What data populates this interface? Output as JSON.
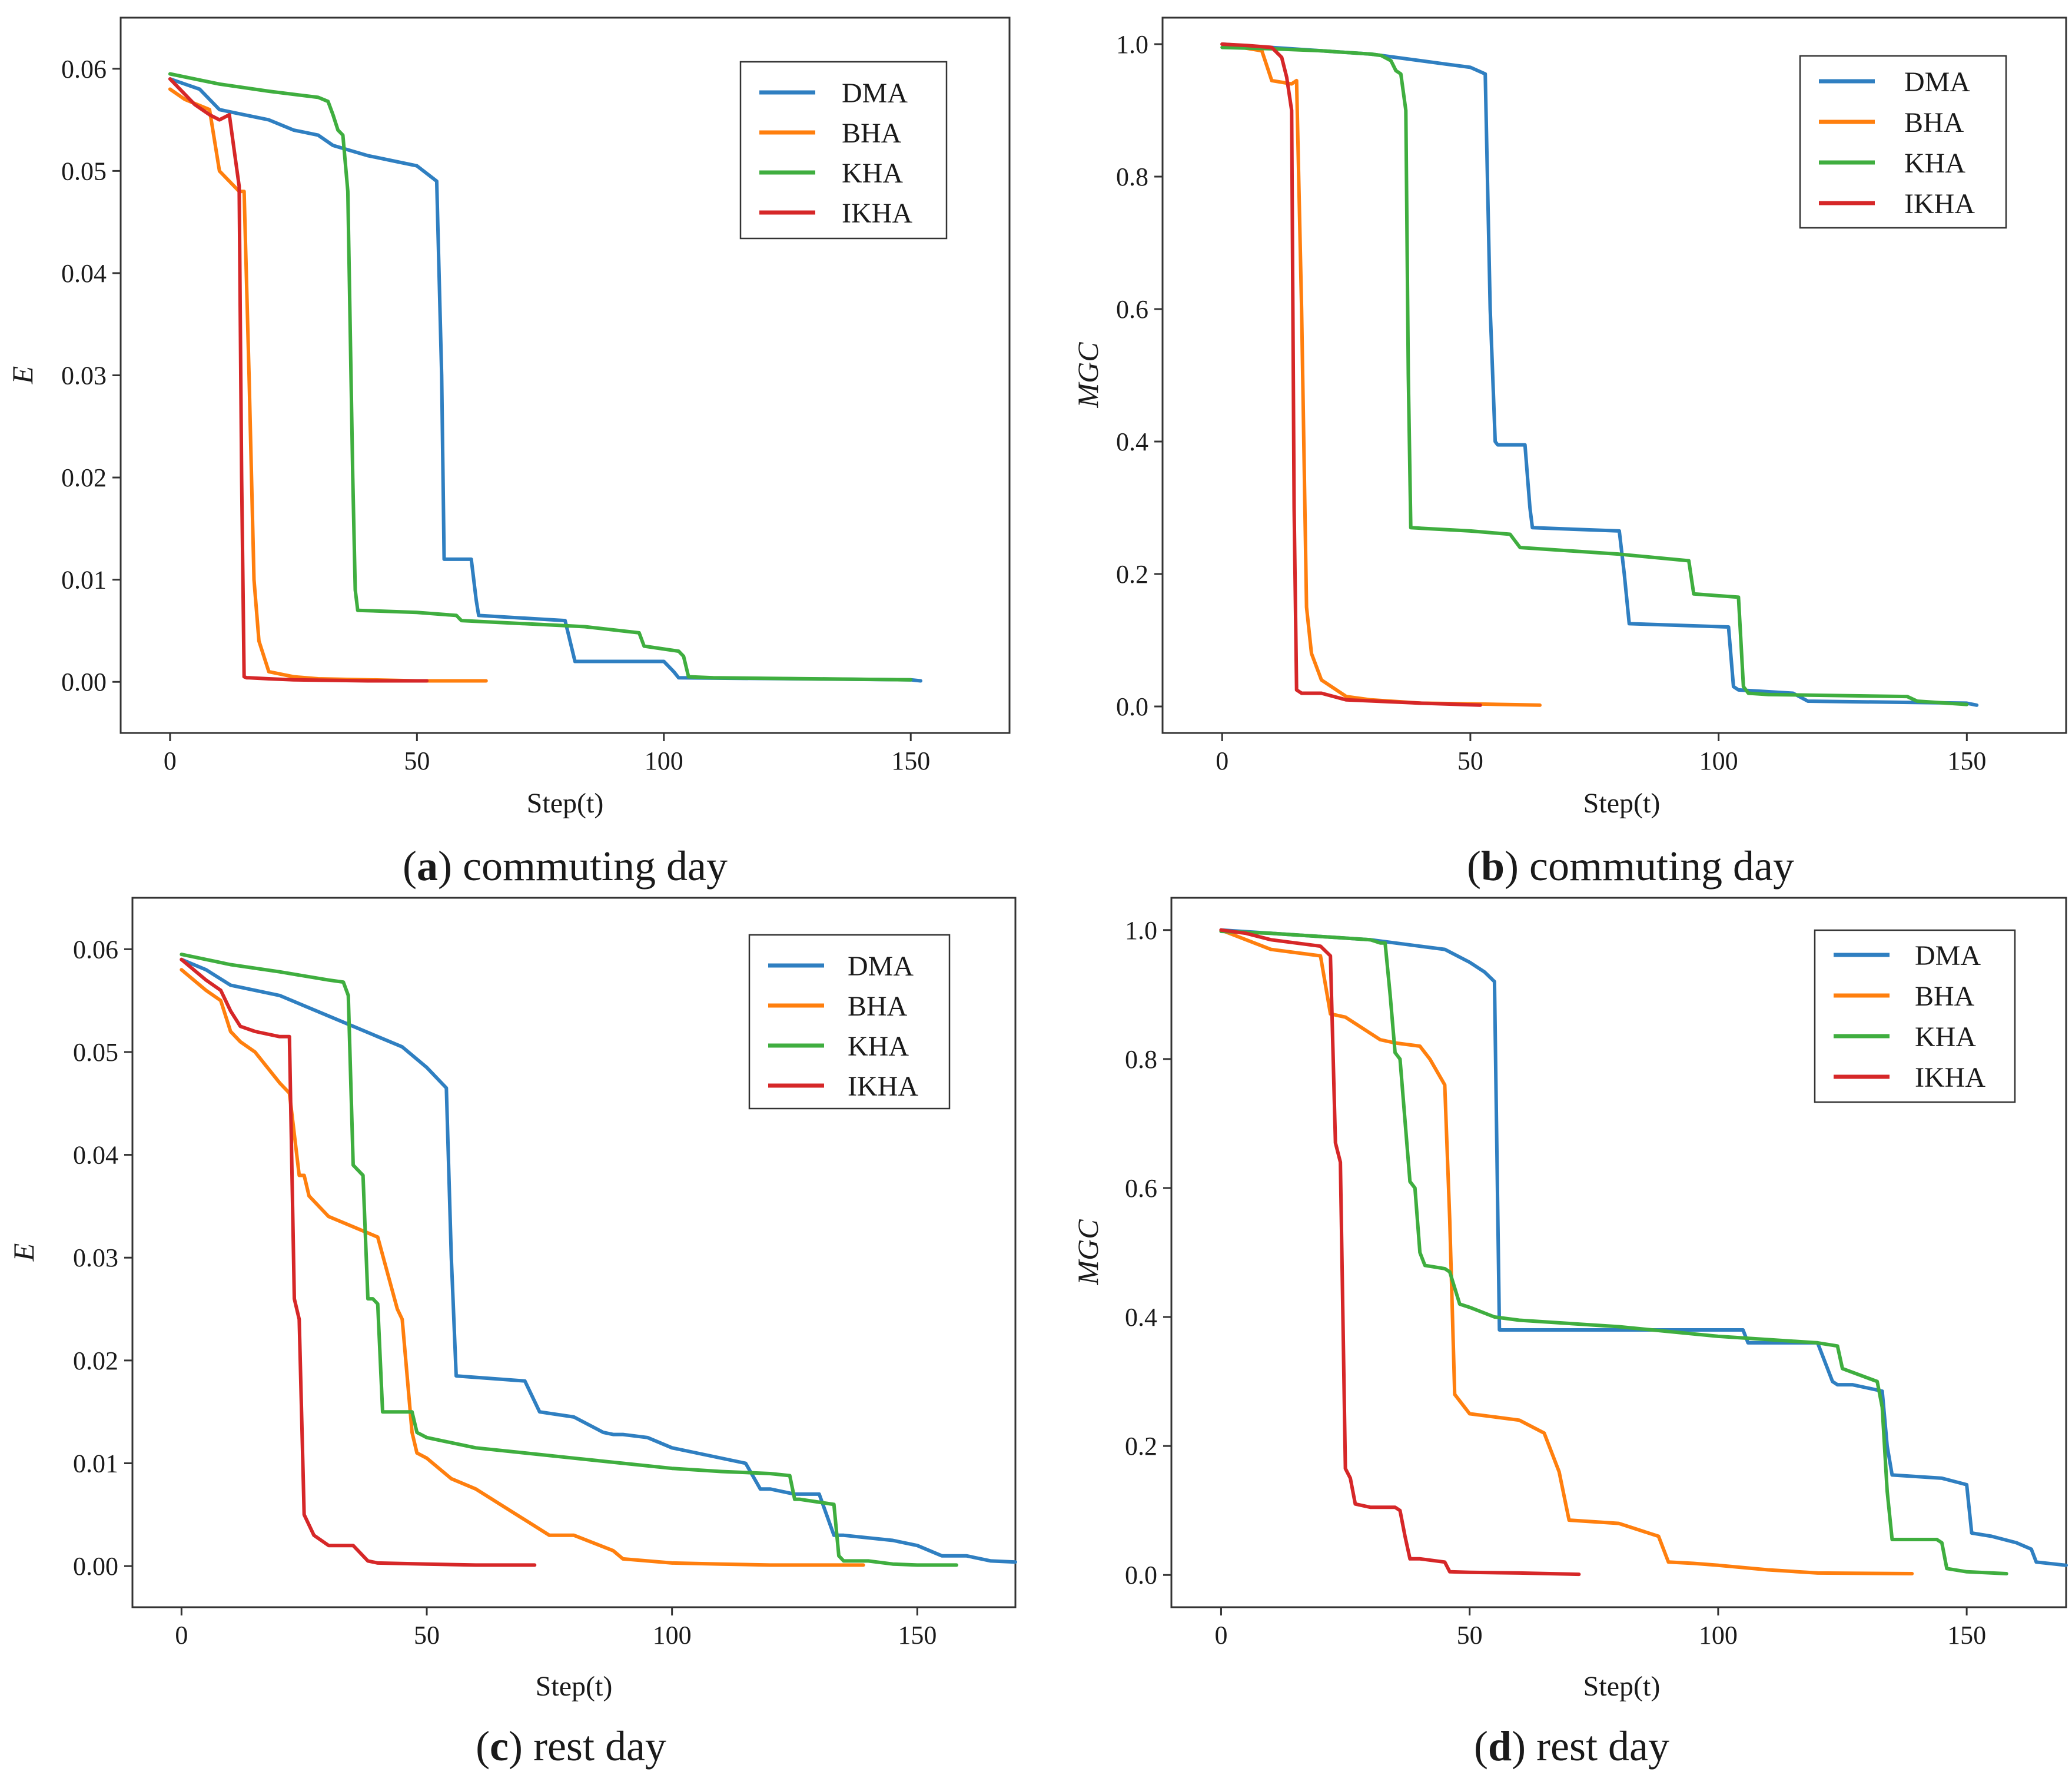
{
  "colors": {
    "DMA": "#2f7fc1",
    "BHA": "#ff7f0e",
    "KHA": "#3fae3f",
    "IKHA": "#d62728"
  },
  "chart_data": [
    {
      "type": "line",
      "panel_letter": "a",
      "caption_text": "commuting day",
      "xlabel": "Step(t)",
      "ylabel": "E",
      "xlim": [
        -10,
        170
      ],
      "ylim": [
        -0.005,
        0.065
      ],
      "xticks": [
        0,
        50,
        100,
        150
      ],
      "yticks": [
        0.0,
        0.01,
        0.02,
        0.03,
        0.04,
        0.05,
        0.06
      ],
      "ytick_labels": [
        "0.00",
        "0.01",
        "0.02",
        "0.03",
        "0.04",
        "0.05",
        "0.06"
      ],
      "xtick_labels": [
        "0",
        "50",
        "100",
        "150"
      ],
      "legend": [
        "DMA",
        "BHA",
        "KHA",
        "IKHA"
      ],
      "legend_position": "top-right",
      "series": [
        {
          "name": "DMA",
          "x": [
            0,
            3,
            6,
            10,
            15,
            20,
            25,
            30,
            33,
            40,
            45,
            50,
            54,
            55,
            55.5,
            61,
            62,
            62.5,
            80,
            81,
            82,
            100,
            102,
            103,
            150,
            152
          ],
          "y": [
            0.059,
            0.0585,
            0.058,
            0.056,
            0.0555,
            0.055,
            0.054,
            0.0535,
            0.0525,
            0.0515,
            0.051,
            0.0505,
            0.049,
            0.03,
            0.012,
            0.012,
            0.008,
            0.0065,
            0.006,
            0.004,
            0.002,
            0.002,
            0.001,
            0.0004,
            0.0002,
            0.0001
          ]
        },
        {
          "name": "BHA",
          "x": [
            0,
            3,
            8,
            10,
            14,
            15,
            16,
            17,
            18,
            20,
            25,
            30,
            40,
            50,
            64
          ],
          "y": [
            0.058,
            0.057,
            0.056,
            0.05,
            0.048,
            0.048,
            0.03,
            0.01,
            0.004,
            0.001,
            0.0005,
            0.0003,
            0.0002,
            0.0001,
            0.0001
          ]
        },
        {
          "name": "KHA",
          "x": [
            0,
            10,
            20,
            30,
            32,
            33,
            34,
            35,
            36,
            37,
            37.5,
            38,
            50,
            58,
            59,
            80,
            84,
            95,
            96,
            103,
            104,
            105,
            110,
            130,
            150
          ],
          "y": [
            0.0595,
            0.0585,
            0.0578,
            0.0572,
            0.0568,
            0.0555,
            0.054,
            0.0535,
            0.048,
            0.02,
            0.009,
            0.007,
            0.0068,
            0.0065,
            0.006,
            0.0055,
            0.0054,
            0.0048,
            0.0035,
            0.003,
            0.0025,
            0.0005,
            0.0004,
            0.0003,
            0.0002
          ]
        },
        {
          "name": "IKHA",
          "x": [
            0,
            2,
            5,
            8,
            10,
            12,
            13,
            14,
            14.5,
            15,
            15.5,
            16,
            20,
            25,
            40,
            52
          ],
          "y": [
            0.059,
            0.058,
            0.0565,
            0.0555,
            0.055,
            0.0555,
            0.052,
            0.0485,
            0.02,
            0.0005,
            0.0004,
            0.0004,
            0.0003,
            0.0002,
            0.0001,
            0.0001
          ]
        }
      ]
    },
    {
      "type": "line",
      "panel_letter": "b",
      "caption_text": "commuting day",
      "xlabel": "Step(t)",
      "ylabel": "MGC",
      "xlim": [
        -12,
        170
      ],
      "ylim": [
        -0.04,
        1.04
      ],
      "xticks": [
        0,
        50,
        100,
        150
      ],
      "yticks": [
        0.0,
        0.2,
        0.4,
        0.6,
        0.8,
        1.0
      ],
      "ytick_labels": [
        "0.0",
        "0.2",
        "0.4",
        "0.6",
        "0.8",
        "1.0"
      ],
      "xtick_labels": [
        "0",
        "50",
        "100",
        "150"
      ],
      "legend": [
        "DMA",
        "BHA",
        "KHA",
        "IKHA"
      ],
      "legend_position": "top-right",
      "series": [
        {
          "name": "DMA",
          "x": [
            0,
            10,
            20,
            30,
            35,
            40,
            45,
            50,
            53,
            54,
            55,
            55.5,
            61,
            62,
            62.5,
            80,
            81,
            82,
            102,
            103,
            104,
            115,
            118,
            150,
            152
          ],
          "y": [
            1.0,
            0.995,
            0.99,
            0.985,
            0.98,
            0.975,
            0.97,
            0.965,
            0.955,
            0.6,
            0.4,
            0.395,
            0.395,
            0.3,
            0.27,
            0.265,
            0.2,
            0.125,
            0.12,
            0.03,
            0.025,
            0.02,
            0.008,
            0.005,
            0.002
          ]
        },
        {
          "name": "BHA",
          "x": [
            0,
            8,
            10,
            14,
            15,
            16,
            17,
            18,
            20,
            25,
            30,
            40,
            50,
            64
          ],
          "y": [
            1.0,
            0.99,
            0.945,
            0.94,
            0.945,
            0.6,
            0.15,
            0.08,
            0.04,
            0.015,
            0.01,
            0.005,
            0.004,
            0.002
          ]
        },
        {
          "name": "KHA",
          "x": [
            0,
            10,
            20,
            30,
            32,
            34,
            35,
            36,
            37,
            37.5,
            38,
            50,
            58,
            60,
            80,
            94,
            95,
            104,
            105,
            106,
            110,
            138,
            140,
            150
          ],
          "y": [
            0.995,
            0.993,
            0.99,
            0.985,
            0.983,
            0.975,
            0.96,
            0.955,
            0.9,
            0.5,
            0.27,
            0.265,
            0.26,
            0.24,
            0.23,
            0.22,
            0.17,
            0.165,
            0.03,
            0.02,
            0.018,
            0.015,
            0.008,
            0.003
          ]
        },
        {
          "name": "IKHA",
          "x": [
            0,
            5,
            10,
            12,
            13,
            14,
            14.5,
            15,
            16,
            20,
            25,
            40,
            52
          ],
          "y": [
            1.0,
            0.998,
            0.995,
            0.98,
            0.95,
            0.9,
            0.3,
            0.025,
            0.02,
            0.02,
            0.01,
            0.005,
            0.002
          ]
        }
      ]
    },
    {
      "type": "line",
      "panel_letter": "c",
      "caption_text": "rest day",
      "xlabel": "Step(t)",
      "ylabel": "E",
      "xlim": [
        -10,
        170
      ],
      "ylim": [
        -0.004,
        0.065
      ],
      "xticks": [
        0,
        50,
        100,
        150
      ],
      "yticks": [
        0.0,
        0.01,
        0.02,
        0.03,
        0.04,
        0.05,
        0.06
      ],
      "ytick_labels": [
        "0.00",
        "0.01",
        "0.02",
        "0.03",
        "0.04",
        "0.05",
        "0.06"
      ],
      "xtick_labels": [
        "0",
        "50",
        "100",
        "150"
      ],
      "legend": [
        "DMA",
        "BHA",
        "KHA",
        "IKHA"
      ],
      "legend_position": "top-right",
      "series": [
        {
          "name": "DMA",
          "x": [
            0,
            5,
            10,
            20,
            30,
            40,
            45,
            50,
            54,
            55,
            56,
            70,
            73,
            80,
            86,
            88,
            90,
            95,
            100,
            105,
            115,
            118,
            120,
            125,
            130,
            133,
            135,
            145,
            150,
            155,
            160,
            165,
            170
          ],
          "y": [
            0.059,
            0.058,
            0.0565,
            0.0555,
            0.0535,
            0.0515,
            0.0505,
            0.0485,
            0.0465,
            0.03,
            0.0185,
            0.018,
            0.015,
            0.0145,
            0.013,
            0.0128,
            0.0128,
            0.0125,
            0.0115,
            0.011,
            0.01,
            0.0075,
            0.0075,
            0.007,
            0.007,
            0.003,
            0.003,
            0.0025,
            0.002,
            0.001,
            0.001,
            0.0005,
            0.0004
          ]
        },
        {
          "name": "BHA",
          "x": [
            0,
            5,
            8,
            10,
            12,
            15,
            20,
            22,
            24,
            25,
            26,
            30,
            35,
            40,
            44,
            45,
            47,
            48,
            50,
            55,
            60,
            65,
            70,
            75,
            80,
            88,
            90,
            95,
            100,
            110,
            120,
            139
          ],
          "y": [
            0.058,
            0.056,
            0.055,
            0.052,
            0.051,
            0.05,
            0.047,
            0.046,
            0.038,
            0.038,
            0.036,
            0.034,
            0.033,
            0.032,
            0.025,
            0.024,
            0.013,
            0.011,
            0.0105,
            0.0085,
            0.0075,
            0.006,
            0.0045,
            0.003,
            0.003,
            0.0015,
            0.0007,
            0.0005,
            0.0003,
            0.0002,
            0.0001,
            0.0001
          ]
        },
        {
          "name": "KHA",
          "x": [
            0,
            10,
            20,
            30,
            33,
            34,
            35,
            37,
            38,
            39,
            40,
            41,
            42,
            47,
            48,
            50,
            55,
            60,
            70,
            80,
            90,
            100,
            110,
            120,
            124,
            125,
            126,
            133,
            134,
            135,
            140,
            145,
            150,
            158
          ],
          "y": [
            0.0595,
            0.0585,
            0.0578,
            0.057,
            0.0568,
            0.0555,
            0.039,
            0.038,
            0.026,
            0.026,
            0.0255,
            0.015,
            0.015,
            0.015,
            0.013,
            0.0125,
            0.012,
            0.0115,
            0.011,
            0.0105,
            0.01,
            0.0095,
            0.0092,
            0.009,
            0.0088,
            0.0065,
            0.0065,
            0.006,
            0.001,
            0.0005,
            0.0005,
            0.0002,
            0.0001,
            0.0001
          ]
        },
        {
          "name": "IKHA",
          "x": [
            0,
            5,
            8,
            10,
            12,
            15,
            20,
            22,
            23,
            24,
            25,
            26,
            27,
            30,
            35,
            38,
            40,
            50,
            60,
            72
          ],
          "y": [
            0.059,
            0.057,
            0.056,
            0.054,
            0.0525,
            0.052,
            0.0515,
            0.0515,
            0.026,
            0.024,
            0.005,
            0.004,
            0.003,
            0.002,
            0.002,
            0.0005,
            0.0003,
            0.0002,
            0.0001,
            0.0001
          ]
        }
      ]
    },
    {
      "type": "line",
      "panel_letter": "d",
      "caption_text": "rest day",
      "xlabel": "Step(t)",
      "ylabel": "MGC",
      "xlim": [
        -10,
        170
      ],
      "ylim": [
        -0.05,
        1.05
      ],
      "xticks": [
        0,
        50,
        100,
        150
      ],
      "yticks": [
        0.0,
        0.2,
        0.4,
        0.6,
        0.8,
        1.0
      ],
      "ytick_labels": [
        "0.0",
        "0.2",
        "0.4",
        "0.6",
        "0.8",
        "1.0"
      ],
      "xtick_labels": [
        "0",
        "50",
        "100",
        "150"
      ],
      "legend": [
        "DMA",
        "BHA",
        "KHA",
        "IKHA"
      ],
      "legend_position": "top-right",
      "series": [
        {
          "name": "DMA",
          "x": [
            0,
            10,
            20,
            30,
            35,
            40,
            45,
            50,
            53,
            55,
            56,
            57,
            70,
            80,
            90,
            100,
            105,
            106,
            110,
            120,
            123,
            124,
            127,
            130,
            133,
            134,
            135,
            145,
            150,
            151,
            155,
            160,
            163,
            164,
            170
          ],
          "y": [
            1.0,
            0.995,
            0.99,
            0.985,
            0.98,
            0.975,
            0.97,
            0.95,
            0.935,
            0.92,
            0.38,
            0.38,
            0.38,
            0.38,
            0.38,
            0.38,
            0.38,
            0.36,
            0.36,
            0.36,
            0.3,
            0.295,
            0.295,
            0.29,
            0.285,
            0.2,
            0.155,
            0.15,
            0.14,
            0.065,
            0.06,
            0.05,
            0.04,
            0.02,
            0.015
          ]
        },
        {
          "name": "BHA",
          "x": [
            0,
            10,
            20,
            22,
            25,
            30,
            32,
            35,
            40,
            42,
            45,
            46,
            47,
            48,
            50,
            55,
            60,
            65,
            68,
            70,
            80,
            88,
            90,
            95,
            100,
            110,
            120,
            139
          ],
          "y": [
            1.0,
            0.97,
            0.96,
            0.87,
            0.865,
            0.84,
            0.83,
            0.825,
            0.82,
            0.8,
            0.76,
            0.55,
            0.28,
            0.27,
            0.25,
            0.245,
            0.24,
            0.22,
            0.16,
            0.085,
            0.08,
            0.06,
            0.02,
            0.018,
            0.015,
            0.008,
            0.003,
            0.002
          ]
        },
        {
          "name": "KHA",
          "x": [
            0,
            10,
            20,
            30,
            32,
            33,
            34,
            35,
            36,
            38,
            39,
            40,
            41,
            45,
            46,
            48,
            50,
            55,
            60,
            80,
            100,
            110,
            120,
            124,
            125,
            132,
            133,
            134,
            135,
            144,
            145,
            146,
            150,
            158
          ],
          "y": [
            0.998,
            0.995,
            0.99,
            0.985,
            0.98,
            0.98,
            0.9,
            0.81,
            0.8,
            0.61,
            0.6,
            0.5,
            0.48,
            0.475,
            0.47,
            0.42,
            0.415,
            0.4,
            0.395,
            0.385,
            0.37,
            0.365,
            0.36,
            0.355,
            0.32,
            0.3,
            0.26,
            0.13,
            0.055,
            0.055,
            0.05,
            0.01,
            0.005,
            0.002
          ]
        },
        {
          "name": "IKHA",
          "x": [
            0,
            5,
            10,
            15,
            20,
            22,
            23,
            24,
            25,
            26,
            27,
            30,
            35,
            36,
            37,
            38,
            40,
            45,
            46,
            50,
            60,
            72
          ],
          "y": [
            1.0,
            0.995,
            0.985,
            0.98,
            0.975,
            0.96,
            0.67,
            0.64,
            0.165,
            0.15,
            0.11,
            0.105,
            0.105,
            0.1,
            0.06,
            0.025,
            0.025,
            0.02,
            0.005,
            0.004,
            0.003,
            0.001
          ]
        }
      ]
    }
  ]
}
